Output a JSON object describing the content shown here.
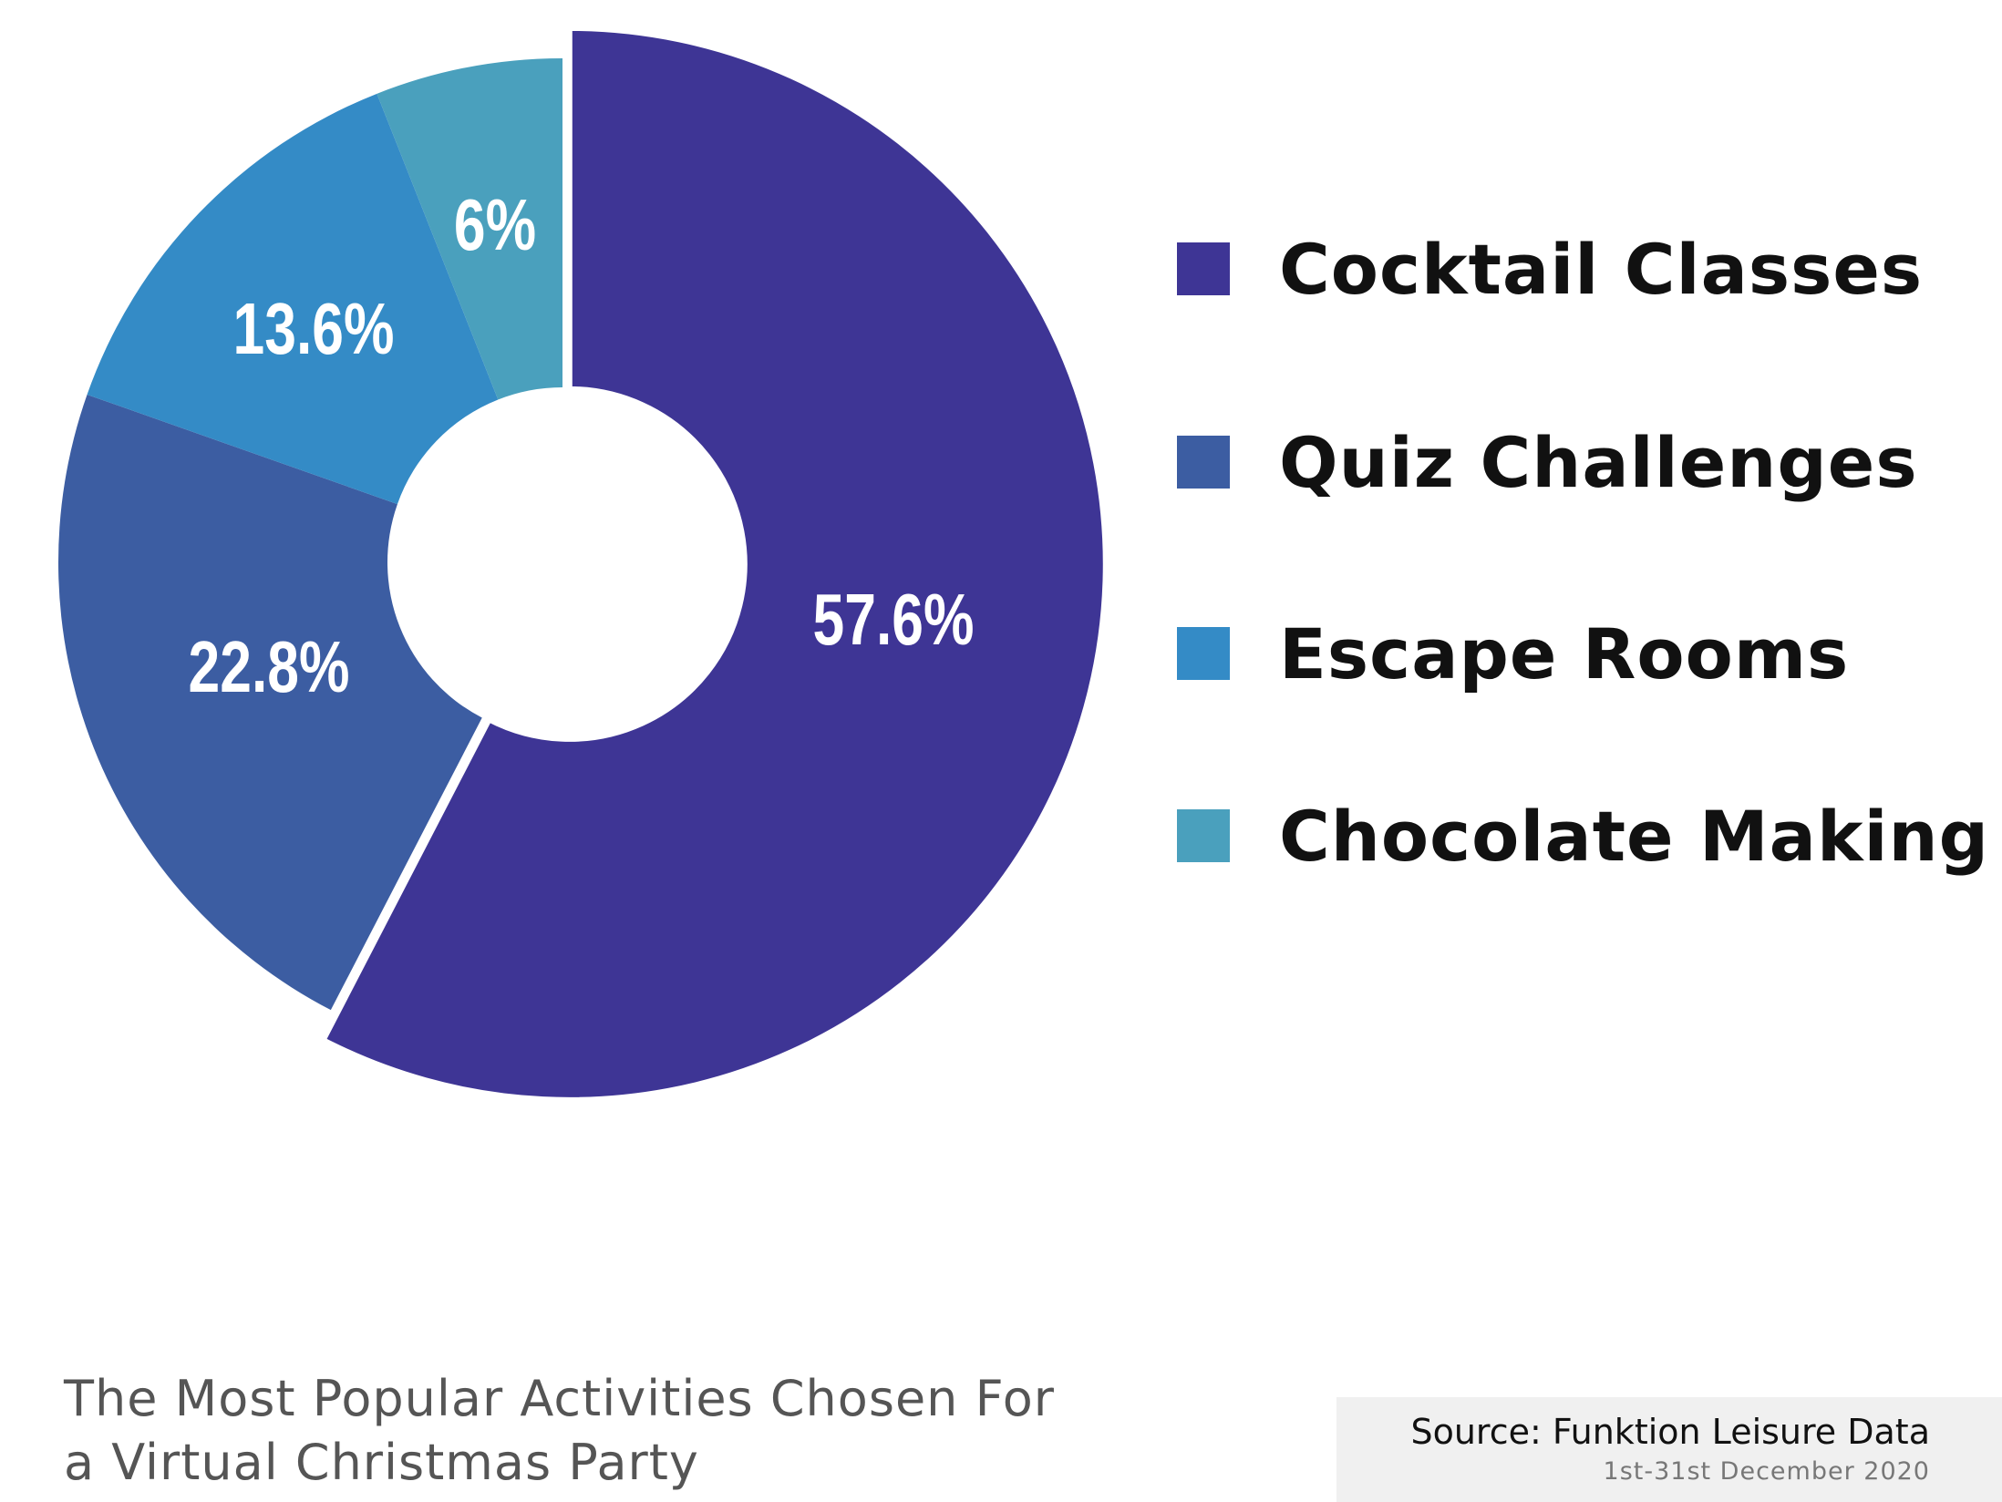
{
  "chart_data": {
    "type": "pie",
    "variant": "donut",
    "title": "The Most Popular Activities Chosen For a Virtual Christmas Party",
    "title_lines": [
      "The Most Popular Activities Chosen For",
      "a Virtual Christmas Party"
    ],
    "categories": [
      "Cocktail Classes",
      "Quiz Challenges",
      "Escape Rooms",
      "Chocolate Making"
    ],
    "values": [
      57.6,
      22.8,
      13.6,
      6
    ],
    "labels": [
      "57.6%",
      "22.8%",
      "13.6%",
      "6%"
    ],
    "colors": [
      "#3e3595",
      "#3c5da2",
      "#348bc6",
      "#4aa0bd"
    ],
    "exploded": [
      "Cocktail Classes"
    ],
    "legend_position": "right",
    "source": "Source: Funktion Leisure Data",
    "date_range": "1st-31st December 2020"
  }
}
